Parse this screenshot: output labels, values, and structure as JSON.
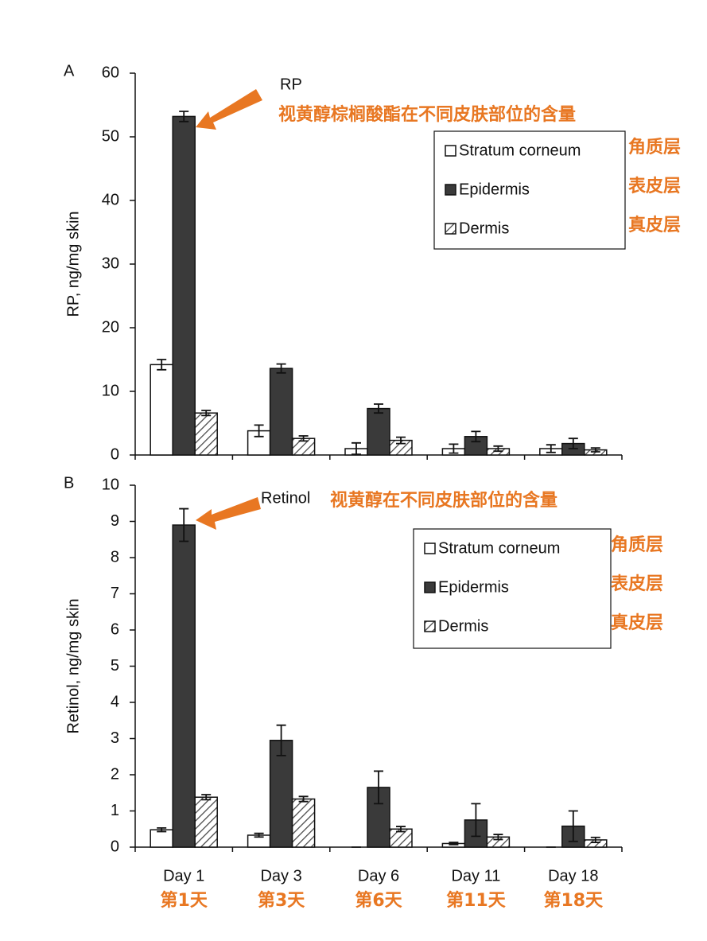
{
  "chart_data": [
    {
      "type": "bar",
      "panel_label": "A",
      "annotation": "RP",
      "annotation_cn": "视黄醇棕榈酸酯在不同皮肤部位的含量",
      "y_label": "RP, ng/mg skin",
      "categories": [
        null,
        null,
        null,
        null,
        null
      ],
      "series": [
        {
          "name": "Stratum corneum",
          "color": "#ffffff",
          "values": [
            14.2,
            3.8,
            1.0,
            1.0,
            1.0
          ],
          "errors": [
            0.8,
            0.9,
            0.9,
            0.7,
            0.6
          ]
        },
        {
          "name": "Epidermis",
          "color": "#3a3a3a",
          "values": [
            53.2,
            13.6,
            7.3,
            2.9,
            1.8
          ],
          "errors": [
            0.8,
            0.7,
            0.7,
            0.8,
            0.8
          ]
        },
        {
          "name": "Dermis",
          "color": "#ffffff",
          "pattern": "hatch",
          "values": [
            6.6,
            2.6,
            2.3,
            1.0,
            0.8
          ],
          "errors": [
            0.4,
            0.4,
            0.5,
            0.4,
            0.3
          ]
        }
      ],
      "legend_cn": [
        "角质层",
        "表皮层",
        "真皮层"
      ],
      "ylim": [
        0,
        60
      ],
      "yticks": [
        0,
        10,
        20,
        30,
        40,
        50,
        60
      ]
    },
    {
      "type": "bar",
      "panel_label": "B",
      "annotation": "Retinol",
      "annotation_cn": "视黄醇在不同皮肤部位的含量",
      "y_label": "Retinol, ng/mg skin",
      "categories": [
        "Day 1",
        "Day 3",
        "Day 6",
        "Day 11",
        "Day 18"
      ],
      "categories_cn": [
        "第1天",
        "第3天",
        "第6天",
        "第11天",
        "第18天"
      ],
      "series": [
        {
          "name": "Stratum corneum",
          "color": "#ffffff",
          "values": [
            0.48,
            0.33,
            0,
            0.1,
            0
          ],
          "errors": [
            0.05,
            0.05,
            0,
            0.03,
            0
          ]
        },
        {
          "name": "Epidermis",
          "color": "#3a3a3a",
          "values": [
            8.9,
            2.95,
            1.65,
            0.75,
            0.58
          ],
          "errors": [
            0.45,
            0.42,
            0.45,
            0.45,
            0.42
          ]
        },
        {
          "name": "Dermis",
          "color": "#ffffff",
          "pattern": "hatch",
          "values": [
            1.38,
            1.33,
            0.5,
            0.28,
            0.2
          ],
          "errors": [
            0.07,
            0.07,
            0.07,
            0.07,
            0.07
          ]
        }
      ],
      "legend_cn": [
        "角质层",
        "表皮层",
        "真皮层"
      ],
      "ylim": [
        0,
        10
      ],
      "yticks": [
        0,
        1,
        2,
        3,
        4,
        5,
        6,
        7,
        8,
        9,
        10
      ]
    }
  ]
}
